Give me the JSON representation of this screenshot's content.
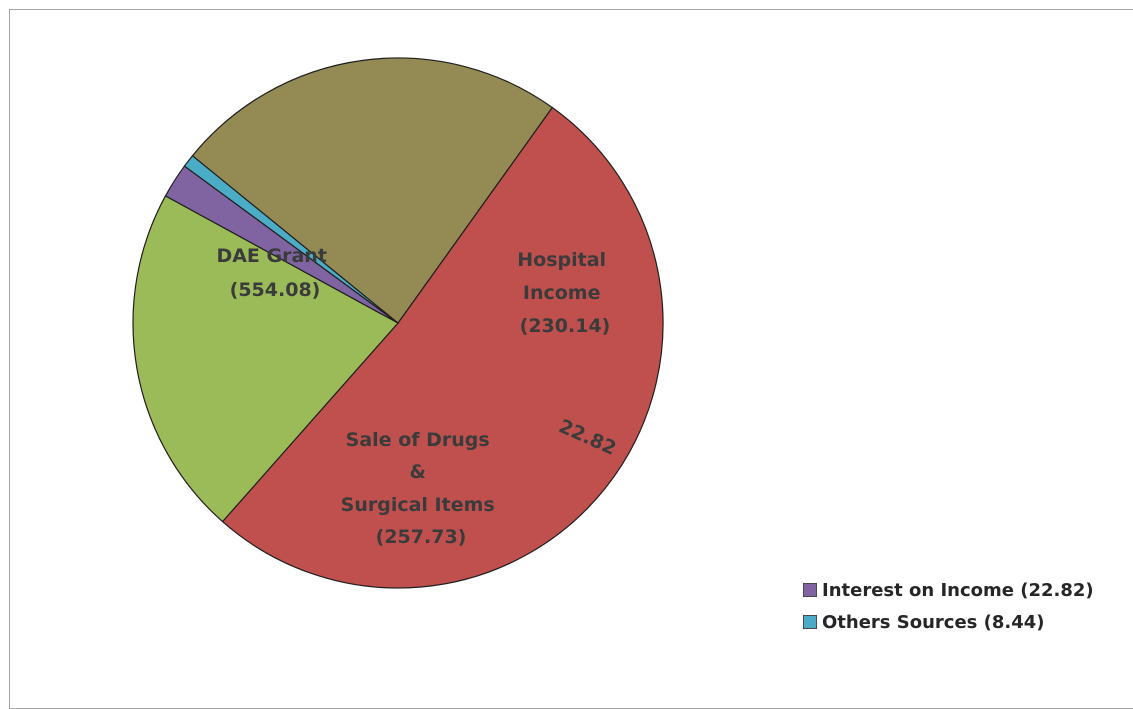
{
  "chart_data": {
    "type": "pie",
    "slices": [
      {
        "label": "DAE Grant",
        "value": 554.08,
        "color": "#c0504d"
      },
      {
        "label": "Hospital Income",
        "value": 230.14,
        "color": "#9bbb59"
      },
      {
        "label": "Interest on Income",
        "value": 22.82,
        "color": "#8064a2"
      },
      {
        "label": "Others Sources",
        "value": 8.44,
        "color": "#4bacc6"
      },
      {
        "label": "Sale of Drugs & Surgical Items",
        "value": 257.73,
        "color": "#948a54"
      }
    ],
    "data_labels": {
      "dae_grant": [
        "DAE Grant",
        "(554.08)"
      ],
      "hospital_income": [
        "Hospital",
        "Income",
        "(230.14)"
      ],
      "interest": [
        "22.82"
      ],
      "sale_of_drugs": [
        "Sale of Drugs",
        "&",
        "Surgical Items",
        "(257.73)"
      ]
    },
    "legend": {
      "placement": "bottom-right",
      "items": [
        {
          "label": "Interest on Income (22.82)",
          "color": "#8064a2"
        },
        {
          "label": "Others Sources (8.44)",
          "color": "#4bacc6"
        }
      ]
    }
  }
}
